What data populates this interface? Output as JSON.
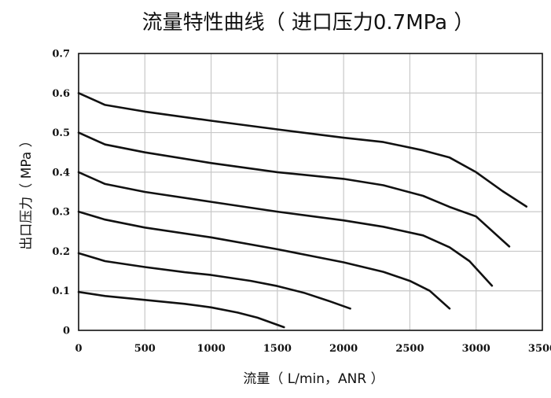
{
  "chart_data": {
    "type": "line",
    "title": "流量特性曲线（ 进口压力0.7MPa ）",
    "xlabel": "流量（ L/min，ANR ）",
    "ylabel": "出口压力（ MPa ）",
    "xlim": [
      0,
      3500
    ],
    "ylim": [
      0,
      0.7
    ],
    "x_ticks": [
      0,
      500,
      1000,
      1500,
      2000,
      2500,
      3000,
      3500
    ],
    "x_tick_labels": [
      "0",
      "500",
      "1000",
      "1500",
      "2000",
      "2500",
      "3000",
      "3500"
    ],
    "y_ticks": [
      0,
      0.1,
      0.2,
      0.3,
      0.4,
      0.5,
      0.6,
      0.7
    ],
    "y_tick_labels": [
      "0",
      "0.1",
      "0.2",
      "0.3",
      "0.4",
      "0.5",
      "0.6",
      "0.7"
    ],
    "grid": true,
    "series": [
      {
        "x": [
          0,
          200,
          500,
          800,
          1000,
          1200,
          1350,
          1550
        ],
        "y": [
          0.097,
          0.087,
          0.077,
          0.067,
          0.058,
          0.045,
          0.032,
          0.008
        ]
      },
      {
        "x": [
          0,
          200,
          500,
          800,
          1000,
          1300,
          1500,
          1700,
          1900,
          2050
        ],
        "y": [
          0.195,
          0.175,
          0.16,
          0.147,
          0.14,
          0.125,
          0.112,
          0.095,
          0.073,
          0.055
        ]
      },
      {
        "x": [
          0,
          200,
          500,
          1000,
          1500,
          2000,
          2300,
          2500,
          2650,
          2800
        ],
        "y": [
          0.3,
          0.28,
          0.26,
          0.235,
          0.205,
          0.172,
          0.148,
          0.125,
          0.1,
          0.055
        ]
      },
      {
        "x": [
          0,
          200,
          500,
          1000,
          1500,
          2000,
          2300,
          2600,
          2800,
          2950,
          3120
        ],
        "y": [
          0.4,
          0.37,
          0.35,
          0.325,
          0.3,
          0.278,
          0.262,
          0.24,
          0.21,
          0.175,
          0.113
        ]
      },
      {
        "x": [
          0,
          200,
          500,
          1000,
          1500,
          2000,
          2300,
          2600,
          2800,
          3000,
          3250
        ],
        "y": [
          0.5,
          0.47,
          0.45,
          0.423,
          0.4,
          0.383,
          0.367,
          0.34,
          0.312,
          0.288,
          0.212
        ]
      },
      {
        "x": [
          0,
          200,
          500,
          1000,
          1500,
          2000,
          2300,
          2600,
          2800,
          3000,
          3200,
          3380
        ],
        "y": [
          0.6,
          0.57,
          0.553,
          0.53,
          0.508,
          0.487,
          0.476,
          0.455,
          0.437,
          0.4,
          0.352,
          0.313
        ]
      }
    ]
  }
}
